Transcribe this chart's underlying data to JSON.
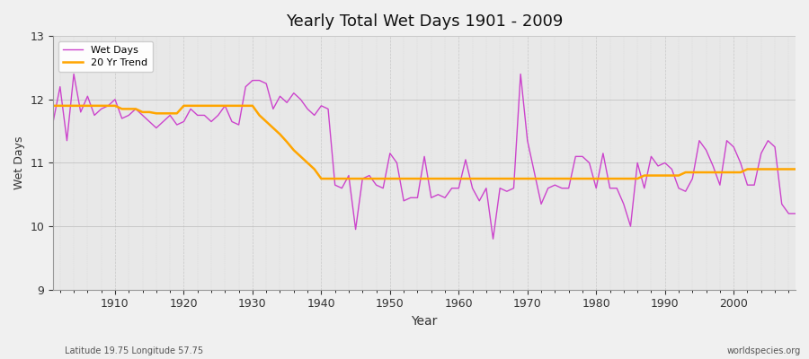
{
  "title": "Yearly Total Wet Days 1901 - 2009",
  "xlabel": "Year",
  "ylabel": "Wet Days",
  "subtitle_left": "Latitude 19.75 Longitude 57.75",
  "subtitle_right": "worldspecies.org",
  "ylim": [
    9,
    13
  ],
  "xlim": [
    1901,
    2009
  ],
  "yticks": [
    9,
    10,
    11,
    12,
    13
  ],
  "xticks": [
    1910,
    1920,
    1930,
    1940,
    1950,
    1960,
    1970,
    1980,
    1990,
    2000
  ],
  "wet_days_color": "#cc44cc",
  "trend_color": "#ffa500",
  "bg_color": "#f0f0f0",
  "plot_bg_color": "#e8e8e8",
  "legend_entries": [
    "Wet Days",
    "20 Yr Trend"
  ],
  "wet_days": {
    "1901": 11.65,
    "1902": 12.2,
    "1903": 11.35,
    "1904": 12.4,
    "1905": 11.8,
    "1906": 12.05,
    "1907": 11.75,
    "1908": 11.85,
    "1909": 11.9,
    "1910": 12.0,
    "1911": 11.7,
    "1912": 11.75,
    "1913": 11.85,
    "1914": 11.75,
    "1915": 11.65,
    "1916": 11.55,
    "1917": 11.65,
    "1918": 11.75,
    "1919": 11.6,
    "1920": 11.65,
    "1921": 11.85,
    "1922": 11.75,
    "1923": 11.75,
    "1924": 11.65,
    "1925": 11.75,
    "1926": 11.9,
    "1927": 11.65,
    "1928": 11.6,
    "1929": 12.2,
    "1930": 12.3,
    "1931": 12.3,
    "1932": 12.25,
    "1933": 11.85,
    "1934": 12.05,
    "1935": 11.95,
    "1936": 12.1,
    "1937": 12.0,
    "1938": 11.85,
    "1939": 11.75,
    "1940": 11.9,
    "1941": 11.85,
    "1942": 10.65,
    "1943": 10.6,
    "1944": 10.8,
    "1945": 9.95,
    "1946": 10.75,
    "1947": 10.8,
    "1948": 10.65,
    "1949": 10.6,
    "1950": 11.15,
    "1951": 11.0,
    "1952": 10.4,
    "1953": 10.45,
    "1954": 10.45,
    "1955": 11.1,
    "1956": 10.45,
    "1957": 10.5,
    "1958": 10.45,
    "1959": 10.6,
    "1960": 10.6,
    "1961": 11.05,
    "1962": 10.6,
    "1963": 10.4,
    "1964": 10.6,
    "1965": 9.8,
    "1966": 10.6,
    "1967": 10.55,
    "1968": 10.6,
    "1969": 12.4,
    "1970": 11.35,
    "1971": 10.85,
    "1972": 10.35,
    "1973": 10.6,
    "1974": 10.65,
    "1975": 10.6,
    "1976": 10.6,
    "1977": 11.1,
    "1978": 11.1,
    "1979": 11.0,
    "1980": 10.6,
    "1981": 11.15,
    "1982": 10.6,
    "1983": 10.6,
    "1984": 10.35,
    "1985": 10.0,
    "1986": 11.0,
    "1987": 10.6,
    "1988": 11.1,
    "1989": 10.95,
    "1990": 11.0,
    "1991": 10.9,
    "1992": 10.6,
    "1993": 10.55,
    "1994": 10.75,
    "1995": 11.35,
    "1996": 11.2,
    "1997": 10.95,
    "1998": 10.65,
    "1999": 11.35,
    "2000": 11.25,
    "2001": 11.0,
    "2002": 10.65,
    "2003": 10.65,
    "2004": 11.15,
    "2005": 11.35,
    "2006": 11.25,
    "2007": 10.35,
    "2008": 10.2,
    "2009": 10.2
  },
  "trend": {
    "1901": 11.9,
    "1902": 11.9,
    "1903": 11.9,
    "1904": 11.9,
    "1905": 11.9,
    "1906": 11.9,
    "1907": 11.9,
    "1908": 11.9,
    "1909": 11.9,
    "1910": 11.9,
    "1911": 11.85,
    "1912": 11.85,
    "1913": 11.85,
    "1914": 11.8,
    "1915": 11.8,
    "1916": 11.78,
    "1917": 11.78,
    "1918": 11.78,
    "1919": 11.78,
    "1920": 11.9,
    "1921": 11.9,
    "1922": 11.9,
    "1923": 11.9,
    "1924": 11.9,
    "1925": 11.9,
    "1926": 11.9,
    "1927": 11.9,
    "1928": 11.9,
    "1929": 11.9,
    "1930": 11.9,
    "1931": 11.75,
    "1932": 11.65,
    "1933": 11.55,
    "1934": 11.45,
    "1935": 11.33,
    "1936": 11.2,
    "1937": 11.1,
    "1938": 11.0,
    "1939": 10.9,
    "1940": 10.75,
    "1941": 10.75,
    "1942": 10.75,
    "1943": 10.75,
    "1944": 10.75,
    "1945": 10.75,
    "1946": 10.75,
    "1947": 10.75,
    "1948": 10.75,
    "1949": 10.75,
    "1950": 10.75,
    "1951": 10.75,
    "1952": 10.75,
    "1953": 10.75,
    "1954": 10.75,
    "1955": 10.75,
    "1956": 10.75,
    "1957": 10.75,
    "1958": 10.75,
    "1959": 10.75,
    "1960": 10.75,
    "1961": 10.75,
    "1962": 10.75,
    "1963": 10.75,
    "1964": 10.75,
    "1965": 10.75,
    "1966": 10.75,
    "1967": 10.75,
    "1968": 10.75,
    "1969": 10.75,
    "1970": 10.75,
    "1971": 10.75,
    "1972": 10.75,
    "1973": 10.75,
    "1974": 10.75,
    "1975": 10.75,
    "1976": 10.75,
    "1977": 10.75,
    "1978": 10.75,
    "1979": 10.75,
    "1980": 10.75,
    "1981": 10.75,
    "1982": 10.75,
    "1983": 10.75,
    "1984": 10.75,
    "1985": 10.75,
    "1986": 10.75,
    "1987": 10.8,
    "1988": 10.8,
    "1989": 10.8,
    "1990": 10.8,
    "1991": 10.8,
    "1992": 10.8,
    "1993": 10.85,
    "1994": 10.85,
    "1995": 10.85,
    "1996": 10.85,
    "1997": 10.85,
    "1998": 10.85,
    "1999": 10.85,
    "2000": 10.85,
    "2001": 10.85,
    "2002": 10.9,
    "2003": 10.9,
    "2004": 10.9,
    "2005": 10.9,
    "2006": 10.9,
    "2007": 10.9,
    "2008": 10.9,
    "2009": 10.9
  }
}
